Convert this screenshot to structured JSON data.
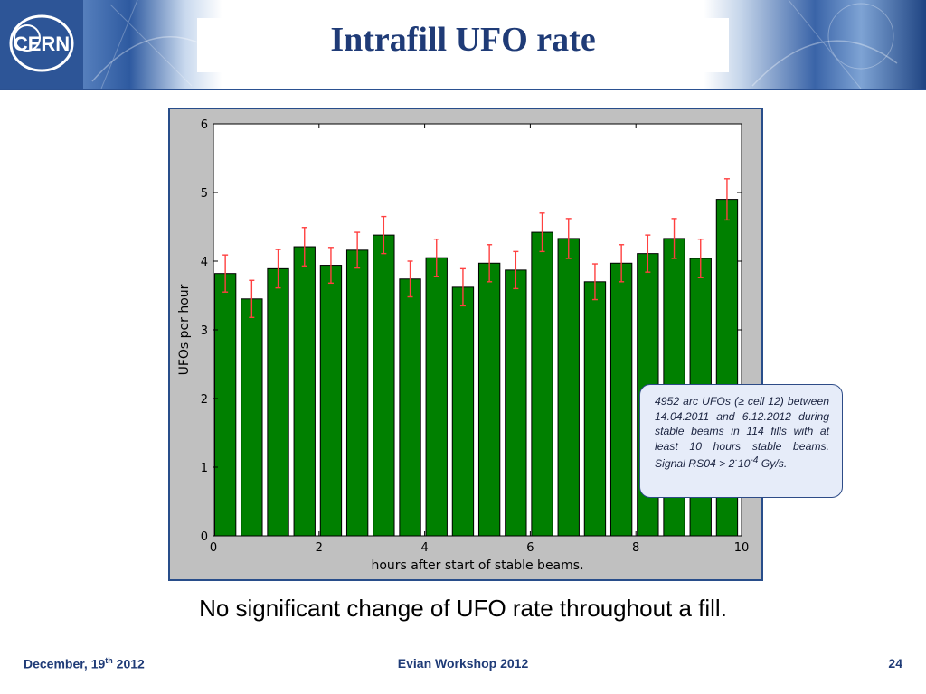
{
  "header": {
    "title": "Intrafill UFO rate",
    "logo_text": "CERN"
  },
  "chart_data": {
    "type": "bar",
    "xlabel": "hours after start of stable beams.",
    "ylabel": "UFOs per hour",
    "xlim": [
      0,
      10
    ],
    "ylim": [
      0,
      6
    ],
    "xticks": [
      0,
      2,
      4,
      6,
      8,
      10
    ],
    "yticks": [
      0,
      1,
      2,
      3,
      4,
      5,
      6
    ],
    "bin_width": 0.5,
    "bar_color": "#008000",
    "error_color": "#ff4040",
    "x": [
      0,
      0.5,
      1,
      1.5,
      2,
      2.5,
      3,
      3.5,
      4,
      4.5,
      5,
      5.5,
      6,
      6.5,
      7,
      7.5,
      8,
      8.5,
      9,
      9.5
    ],
    "values": [
      3.82,
      3.45,
      3.89,
      4.21,
      3.94,
      4.16,
      4.38,
      3.74,
      4.05,
      3.62,
      3.97,
      3.87,
      4.42,
      4.33,
      3.7,
      3.97,
      4.11,
      4.33,
      4.04,
      4.9
    ],
    "errors": [
      0.27,
      0.27,
      0.28,
      0.28,
      0.26,
      0.26,
      0.27,
      0.26,
      0.27,
      0.27,
      0.27,
      0.27,
      0.28,
      0.29,
      0.26,
      0.27,
      0.27,
      0.29,
      0.28,
      0.3
    ],
    "grid": false,
    "legend": "none"
  },
  "annotation": {
    "text_pre": "4952 arc UFOs (≥ cell 12) between 14.04.2011 and 6.12.2012 during stable beams in 114 fills with at least 10 hours stable beams. Signal RS04 > 2",
    "dot": "·",
    "base": "10",
    "exponent": "-4",
    "unit": " Gy/s."
  },
  "caption": "No significant change of UFO rate throughout a fill.",
  "footer": {
    "date_main": "December, 19",
    "date_sup": "th",
    "date_year": " 2012",
    "event": "Evian Workshop 2012",
    "page": "24"
  },
  "colors": {
    "title": "#1f3b77",
    "banner": "#2d5597",
    "note_border": "#2d4b87",
    "note_fill": "#e6ecf9"
  }
}
